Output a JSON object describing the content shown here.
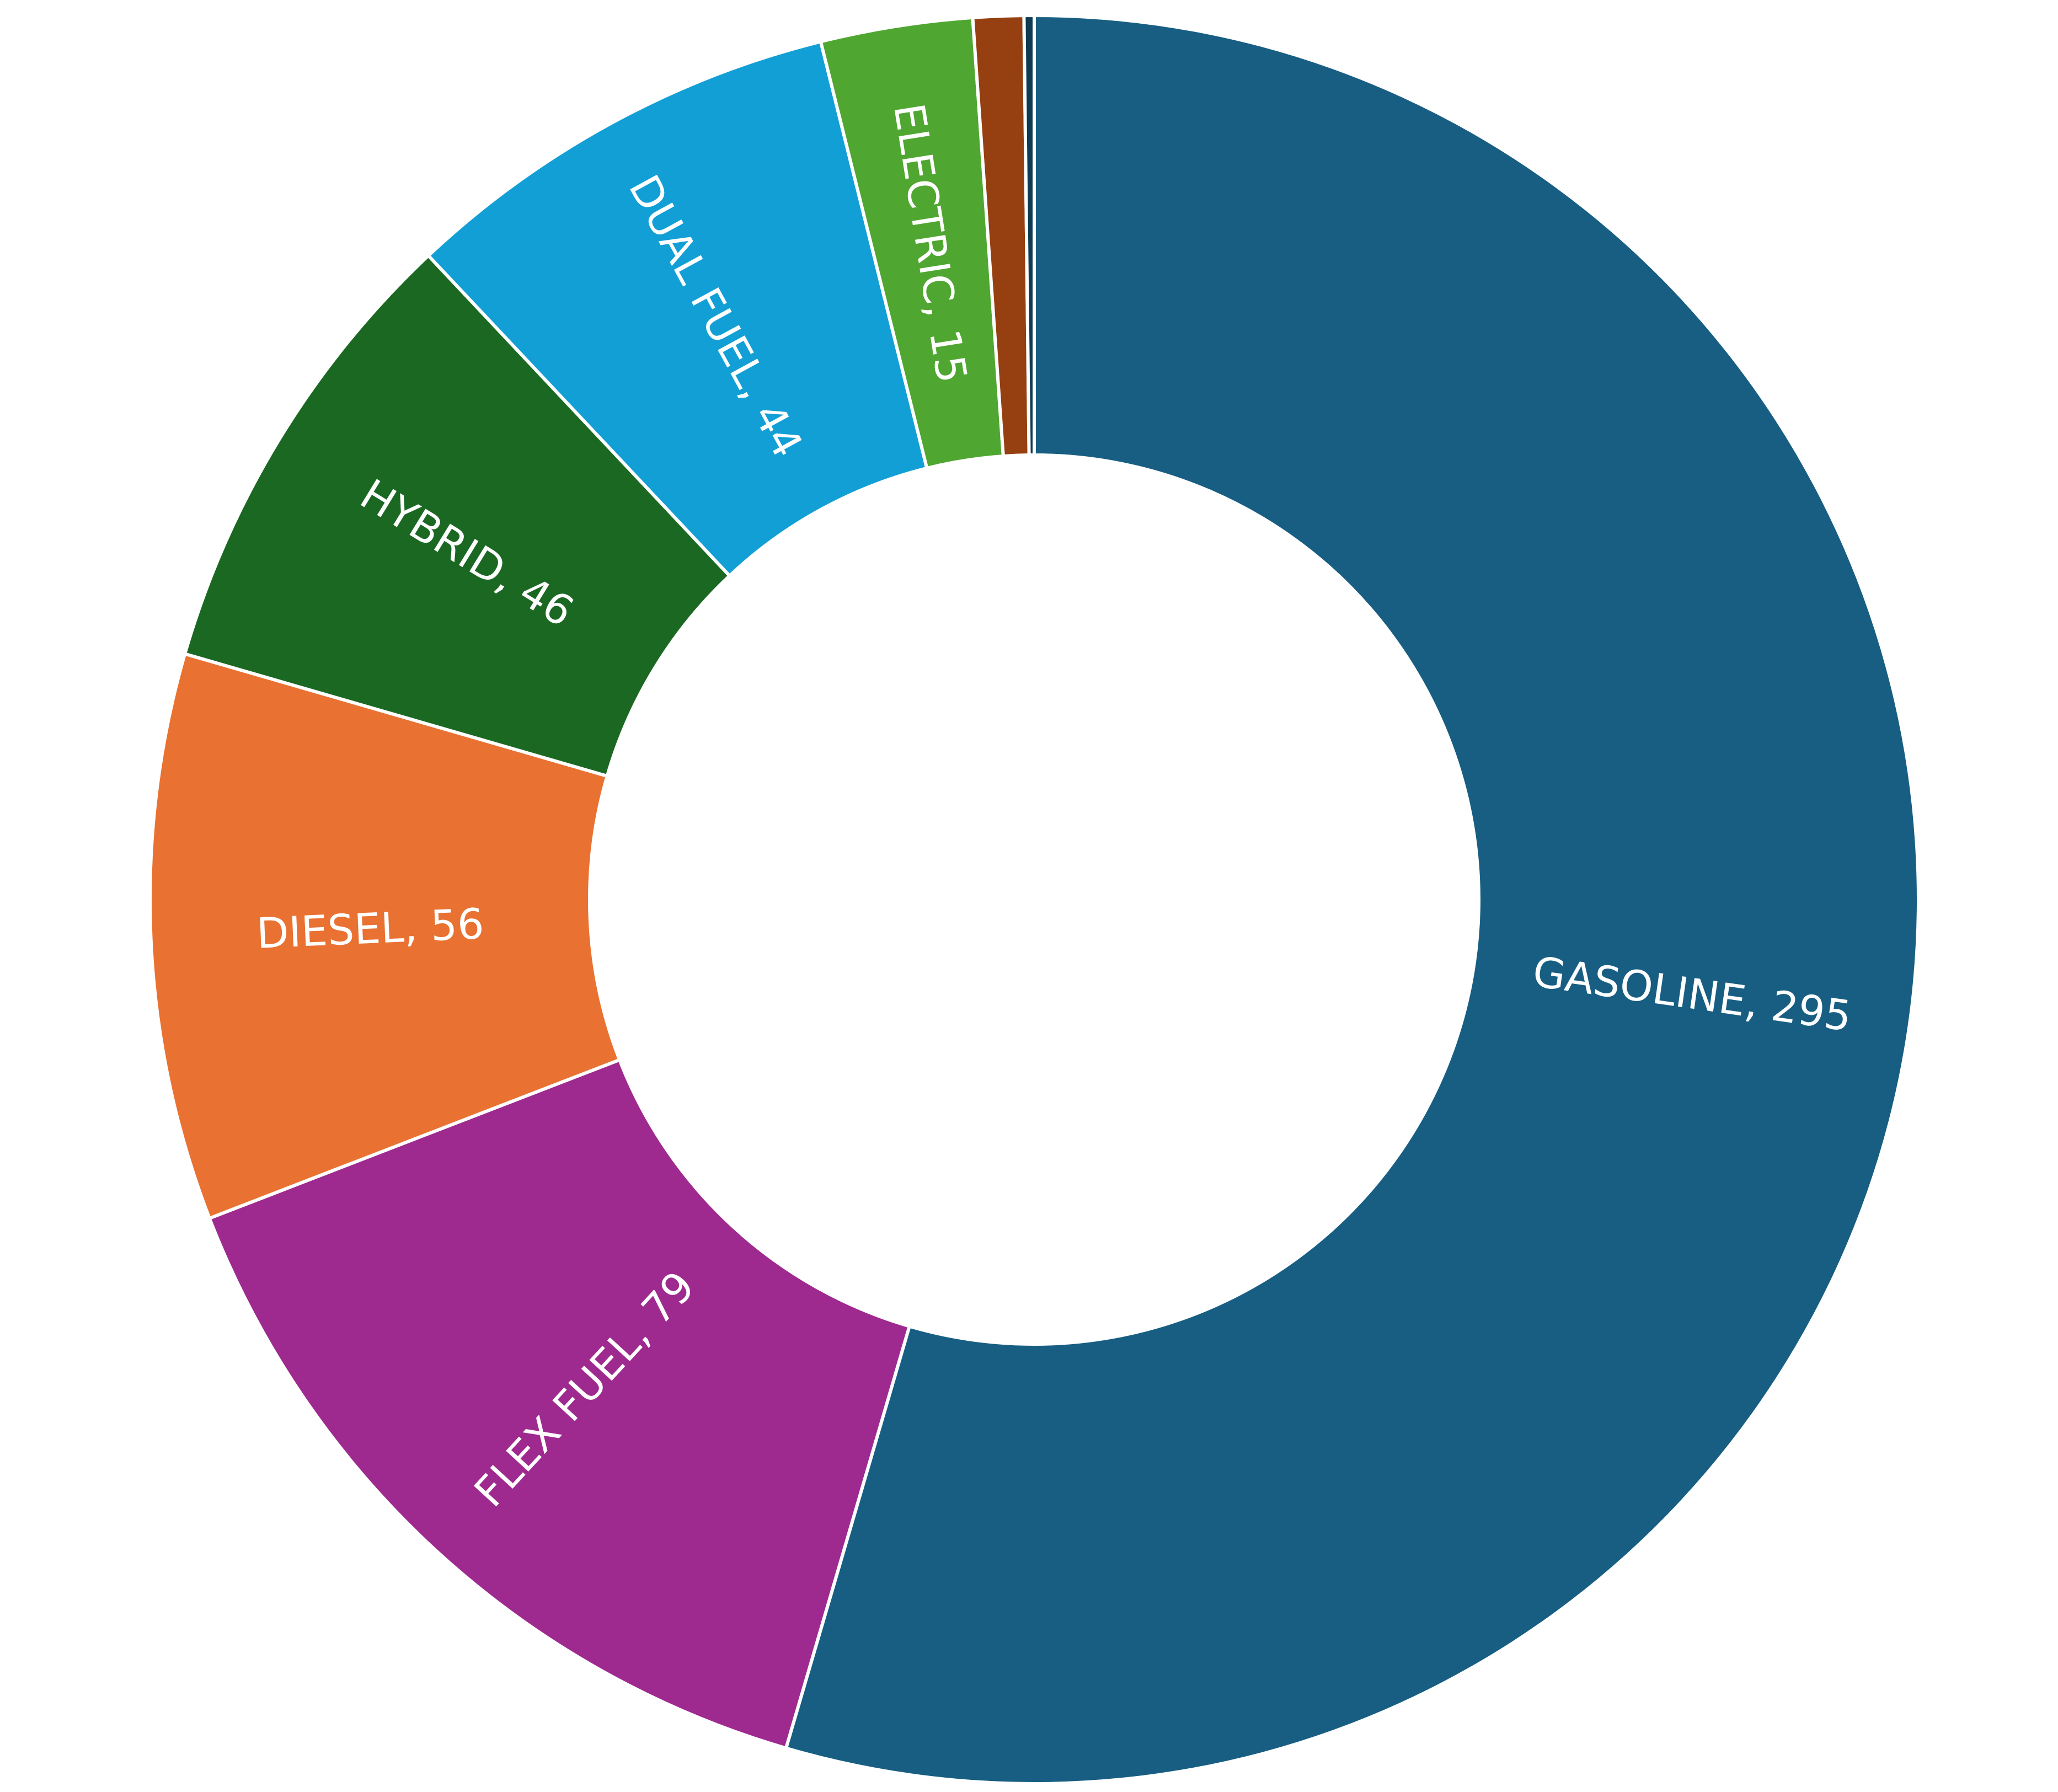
{
  "chart_data": {
    "type": "pie",
    "variant": "doughnut",
    "start": "top",
    "direction": "clockwise",
    "title": "",
    "slices": [
      {
        "label": "GASOLINE",
        "value": 295,
        "color": "#175e82",
        "show_label": true
      },
      {
        "label": "FLEX FUEL",
        "value": 79,
        "color": "#9e2a8f",
        "show_label": true
      },
      {
        "label": "DIESEL",
        "value": 56,
        "color": "#e97132",
        "show_label": true
      },
      {
        "label": "HYBRID",
        "value": 46,
        "color": "#1b6823",
        "show_label": true
      },
      {
        "label": "DUAL FUEL",
        "value": 44,
        "color": "#129fd6",
        "show_label": true
      },
      {
        "label": "ELECTRIC",
        "value": 15,
        "color": "#4fa630",
        "show_label": true
      },
      {
        "label": "",
        "value": 5,
        "color": "#963f10",
        "show_label": false
      },
      {
        "label": "",
        "value": 1,
        "color": "#0e3b52",
        "show_label": false
      }
    ]
  }
}
